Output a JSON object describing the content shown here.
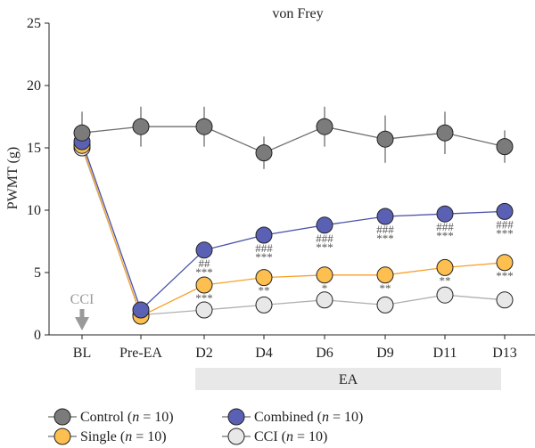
{
  "chart_data": {
    "type": "line",
    "title": "von Frey",
    "ylabel": "PWMT (g)",
    "xlabel": "",
    "ylim": [
      0,
      25
    ],
    "yticks": [
      0,
      5,
      10,
      15,
      20,
      25
    ],
    "categories": [
      "BL",
      "Pre-EA",
      "D2",
      "D4",
      "D6",
      "D9",
      "D11",
      "D13"
    ],
    "series": [
      {
        "name": "CCI",
        "legend_label": "CCI (",
        "n_label": "n",
        "n_value": " = 10)",
        "color": "#e8e8e8",
        "line_color": "#b0b0b0",
        "values": [
          15.0,
          1.6,
          2.0,
          2.4,
          2.8,
          2.4,
          3.2,
          2.8
        ],
        "errors": [
          0,
          0,
          0,
          0,
          0,
          0,
          0,
          0
        ]
      },
      {
        "name": "Single",
        "legend_label": "Single (",
        "n_label": "n",
        "n_value": " = 10)",
        "color": "#fdbf4f",
        "line_color": "#f5a12a",
        "values": [
          15.2,
          1.5,
          4.0,
          4.6,
          4.8,
          4.8,
          5.4,
          5.8
        ],
        "errors": [
          0,
          0,
          0,
          0,
          0,
          0,
          0,
          0
        ]
      },
      {
        "name": "Combined",
        "legend_label": "Combined (",
        "n_label": "n",
        "n_value": " = 10)",
        "color": "#5a61b5",
        "line_color": "#4a52a8",
        "values": [
          15.5,
          2.0,
          6.8,
          8.0,
          8.8,
          9.5,
          9.7,
          9.9
        ],
        "errors": [
          0,
          0,
          0,
          0,
          0,
          0,
          0,
          0
        ]
      },
      {
        "name": "Control",
        "legend_label": "Control (",
        "n_label": "n",
        "n_value": " = 10)",
        "color": "#7b7b7b",
        "line_color": "#6e6e6e",
        "values": [
          16.2,
          16.7,
          16.7,
          14.6,
          16.7,
          15.7,
          16.2,
          15.1
        ],
        "errors": [
          1.7,
          1.6,
          1.6,
          1.3,
          1.6,
          1.9,
          1.7,
          1.3
        ]
      }
    ],
    "annotations": [
      {
        "category": "D2",
        "lines": [
          "##",
          "***"
        ],
        "above_series": "Combined"
      },
      {
        "category": "D2",
        "lines": [
          "***"
        ],
        "above_series": "Single"
      },
      {
        "category": "D4",
        "lines": [
          "###",
          "***"
        ],
        "above_series": "Combined"
      },
      {
        "category": "D4",
        "lines": [
          "**"
        ],
        "above_series": "Single"
      },
      {
        "category": "D6",
        "lines": [
          "###",
          "***"
        ],
        "above_series": "Combined"
      },
      {
        "category": "D6",
        "lines": [
          "*"
        ],
        "above_series": "Single"
      },
      {
        "category": "D9",
        "lines": [
          "###",
          "***"
        ],
        "above_series": "Combined"
      },
      {
        "category": "D9",
        "lines": [
          "**"
        ],
        "above_series": "Single"
      },
      {
        "category": "D11",
        "lines": [
          "###",
          "***"
        ],
        "above_series": "Combined"
      },
      {
        "category": "D11",
        "lines": [
          "**"
        ],
        "above_series": "Single"
      },
      {
        "category": "D13",
        "lines": [
          "###",
          "***"
        ],
        "above_series": "Combined"
      },
      {
        "category": "D13",
        "lines": [
          "***"
        ],
        "above_series": "Single"
      }
    ],
    "cci_marker": {
      "label": "CCI",
      "category": "BL"
    },
    "ea_bar": {
      "label": "EA",
      "from": "D2",
      "to": "D13",
      "color": "#e8e8e8"
    },
    "legend_order": [
      "Control",
      "Combined",
      "Single",
      "CCI"
    ],
    "grid": false
  }
}
